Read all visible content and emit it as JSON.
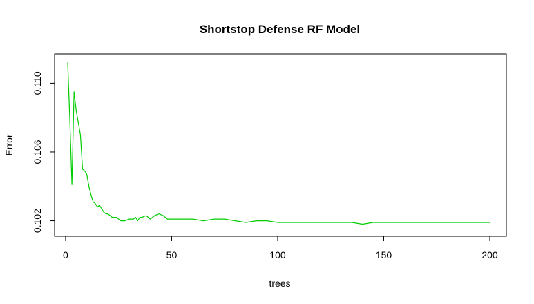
{
  "chart_data": {
    "type": "line",
    "title": "Shortstop Defense RF Model",
    "xlabel": "trees",
    "ylabel": "Error",
    "xlim": [
      1,
      200
    ],
    "ylim": [
      0.1015,
      0.1113
    ],
    "x_ticks": [
      0,
      50,
      100,
      150,
      200
    ],
    "y_ticks": [
      0.102,
      0.106,
      0.11
    ],
    "x_tick_labels": [
      "0",
      "50",
      "100",
      "150",
      "200"
    ],
    "y_tick_labels": [
      "0.102",
      "0.106",
      "0.110"
    ],
    "grid": false,
    "legend": "none",
    "series": [
      {
        "color": "#00cc00",
        "x": [
          1,
          2,
          3,
          4,
          5,
          6,
          7,
          8,
          9,
          10,
          11,
          12,
          13,
          14,
          15,
          16,
          17,
          18,
          19,
          20,
          22,
          24,
          26,
          28,
          30,
          32,
          33,
          34,
          35,
          36,
          38,
          40,
          42,
          44,
          46,
          48,
          50,
          55,
          60,
          65,
          70,
          75,
          80,
          85,
          90,
          95,
          100,
          105,
          110,
          115,
          120,
          125,
          130,
          135,
          140,
          145,
          150,
          155,
          160,
          165,
          170,
          175,
          180,
          185,
          190,
          195,
          200
        ],
        "y": [
          0.1112,
          0.1078,
          0.1041,
          0.1095,
          0.1084,
          0.1077,
          0.107,
          0.105,
          0.1049,
          0.1047,
          0.104,
          0.1035,
          0.1031,
          0.103,
          0.1028,
          0.1029,
          0.1027,
          0.1025,
          0.1024,
          0.1024,
          0.1022,
          0.1022,
          0.102,
          0.102,
          0.1021,
          0.1021,
          0.1022,
          0.102,
          0.1022,
          0.1022,
          0.1023,
          0.1021,
          0.1023,
          0.1024,
          0.1023,
          0.1021,
          0.1021,
          0.1021,
          0.1021,
          0.102,
          0.1021,
          0.1021,
          0.102,
          0.1019,
          0.102,
          0.102,
          0.1019,
          0.1019,
          0.1019,
          0.1019,
          0.1019,
          0.1019,
          0.1019,
          0.1019,
          0.1018,
          0.1019,
          0.1019,
          0.1019,
          0.1019,
          0.1019,
          0.1019,
          0.1019,
          0.1019,
          0.1019,
          0.1019,
          0.1019,
          0.1019
        ]
      }
    ]
  }
}
